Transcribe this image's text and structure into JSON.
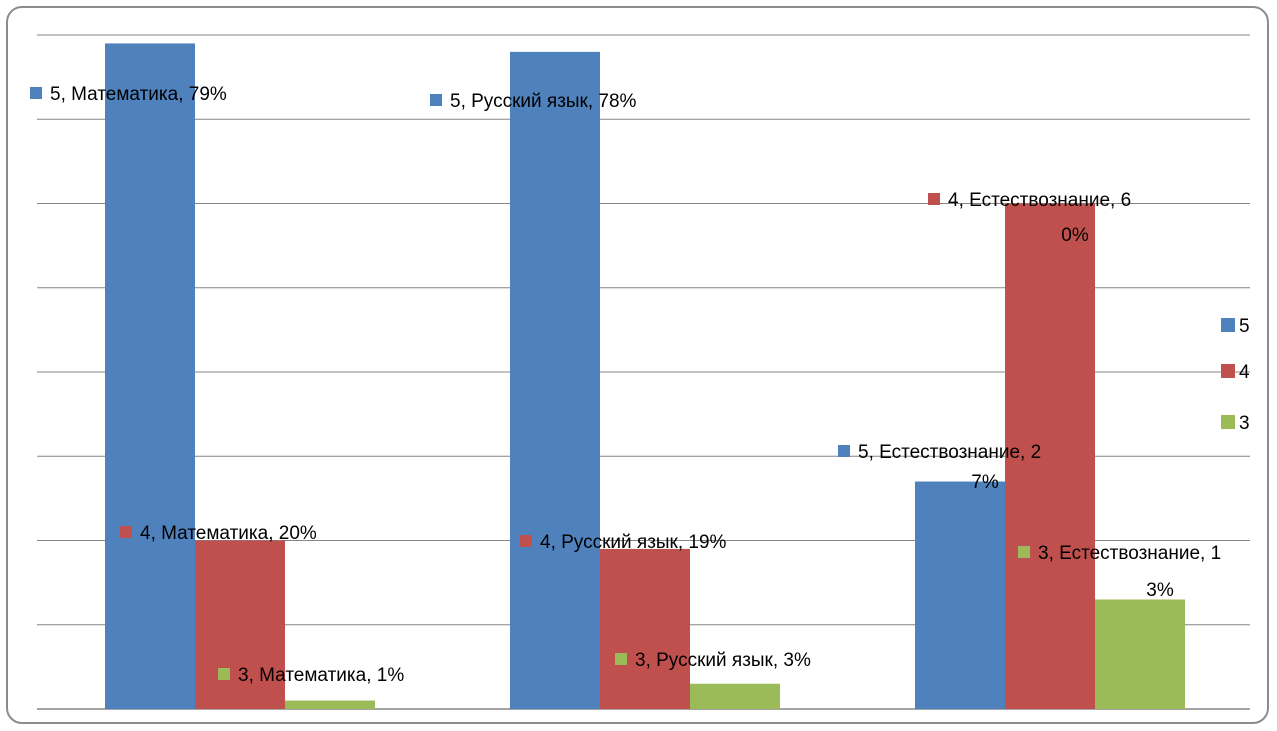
{
  "colors": {
    "series_5": "#4f81bd",
    "series_4": "#c0504d",
    "series_3": "#9bbb59",
    "grid": "#868686"
  },
  "chart_data": {
    "type": "bar",
    "title": "",
    "xlabel": "",
    "ylabel": "",
    "categories": [
      "Математика",
      "Русский язык",
      "Естествознание"
    ],
    "ylim": [
      0,
      0.8
    ],
    "grid": true,
    "legend_position": "right",
    "series": [
      {
        "name": "5",
        "values": [
          0.79,
          0.78,
          0.27
        ]
      },
      {
        "name": "4",
        "values": [
          0.2,
          0.19,
          0.6
        ]
      },
      {
        "name": "3",
        "values": [
          0.01,
          0.03,
          0.13
        ]
      }
    ],
    "data_labels": [
      [
        "5, Математика, 79%",
        "5, Русский язык, 78%",
        [
          "5, Естествознание, 2",
          "7%"
        ]
      ],
      [
        "4, Математика, 20%",
        "4, Русский язык, 19%",
        [
          "4, Естествознание, 6",
          "0%"
        ]
      ],
      [
        "3, Математика, 1%",
        "3, Русский язык, 3%",
        [
          "3, Естествознание, 1",
          "3%"
        ]
      ]
    ]
  }
}
